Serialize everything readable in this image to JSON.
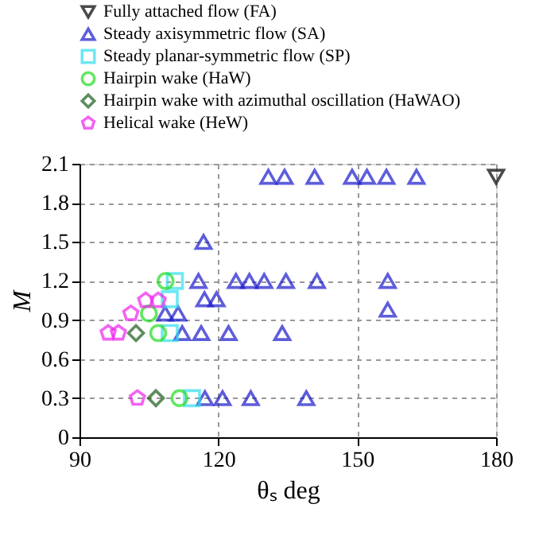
{
  "chart_data": {
    "type": "scatter",
    "xlabel": "θₛ deg",
    "ylabel": "M",
    "xlim": [
      90,
      180
    ],
    "xticks": [
      90,
      120,
      150,
      180
    ],
    "ylim": [
      0,
      2.1
    ],
    "yticks": [
      0,
      0.3,
      0.6,
      0.9,
      1.2,
      1.5,
      1.8,
      2.1
    ],
    "grid": true,
    "legend": "top",
    "series": [
      {
        "name": "Fully attached flow (FA)",
        "color": "#000000",
        "marker": "triangle-down",
        "x": [
          180
        ],
        "values": [
          2.0
        ]
      },
      {
        "name": "Steady axisymmetric flow (SA)",
        "color": "#1a1acc",
        "marker": "triangle",
        "x": [
          130.8,
          134.3,
          140.8,
          148.9,
          152.1,
          156.3,
          162.8,
          116.8,
          115.7,
          123.8,
          126.7,
          129.9,
          134.6,
          141.3,
          156.6,
          117,
          119.6,
          156.6,
          108.5,
          111.3,
          112.2,
          116.3,
          122.2,
          133.8,
          117.1,
          120.9,
          127,
          139
        ],
        "values": [
          2.0,
          2.0,
          2.0,
          2.0,
          2.0,
          2.0,
          2.0,
          1.5,
          1.2,
          1.2,
          1.2,
          1.2,
          1.2,
          1.2,
          1.2,
          1.06,
          1.06,
          0.98,
          0.95,
          0.95,
          0.8,
          0.8,
          0.8,
          0.8,
          0.3,
          0.3,
          0.3,
          0.3
        ]
      },
      {
        "name": "Steady planar-symmetric flow (SP)",
        "color": "#33ddee",
        "marker": "square",
        "x": [
          110.6,
          109.5,
          109.5,
          114.3
        ],
        "values": [
          1.2,
          1.06,
          0.8,
          0.3
        ]
      },
      {
        "name": "Hairpin wake (HaW)",
        "color": "#22dd22",
        "marker": "circle",
        "x": [
          108.6,
          105,
          107,
          111.6
        ],
        "values": [
          1.2,
          0.95,
          0.8,
          0.3
        ]
      },
      {
        "name": "Hairpin wake with azimuthal oscillation (HaWAO)",
        "color": "#1a5c1a",
        "marker": "diamond",
        "x": [
          102.2,
          106.5
        ],
        "values": [
          0.8,
          0.3
        ]
      },
      {
        "name": "Helical wake (HeW)",
        "color": "#ee22ee",
        "x": [
          104.3,
          107,
          101.1,
          96.2,
          98.4,
          102.5
        ],
        "values": [
          1.05,
          1.05,
          0.95,
          0.8,
          0.8,
          0.3
        ]
      }
    ]
  }
}
